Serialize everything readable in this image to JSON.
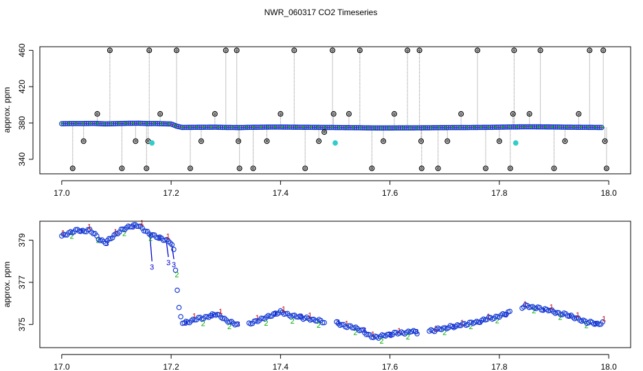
{
  "title": "NWR_060317  CO2 Timeseries",
  "colors": {
    "level1": "#cc0000",
    "level2": "#00aa00",
    "level3": "#0000cc",
    "main_marker": "#1a3fd4",
    "ref_marker": "#000000",
    "flag_marker": "#33cccc",
    "spike_line": "#888888"
  },
  "chart_data": [
    {
      "type": "scatter",
      "panel": "top",
      "ylabel": "approx. ppm",
      "xlim": [
        16.96,
        18.04
      ],
      "ylim": [
        324,
        464
      ],
      "xticks": [
        17.0,
        17.2,
        17.4,
        17.6,
        17.8,
        18.0
      ],
      "xtick_labels": [
        "17.0",
        "17.2",
        "17.4",
        "17.6",
        "17.8",
        "18.0"
      ],
      "yticks": [
        340,
        380,
        420,
        460
      ],
      "ytick_labels": [
        "340",
        "380",
        "420",
        "460"
      ],
      "main_series": {
        "x": [
          17.0,
          17.02,
          17.04,
          17.06,
          17.08,
          17.1,
          17.12,
          17.14,
          17.16,
          17.17,
          17.2,
          17.21,
          17.22,
          17.24,
          17.26,
          17.28,
          17.3,
          17.32,
          17.33,
          17.34,
          17.36,
          17.38,
          17.4,
          17.42,
          17.44,
          17.46,
          17.48,
          17.49,
          17.5,
          17.52,
          17.54,
          17.56,
          17.58,
          17.6,
          17.62,
          17.64,
          17.66,
          17.67,
          17.68,
          17.7,
          17.72,
          17.74,
          17.76,
          17.78,
          17.8,
          17.82,
          17.83,
          17.84,
          17.86,
          17.88,
          17.9,
          17.92,
          17.94,
          17.96,
          17.98,
          17.99
        ],
        "y": [
          379.2,
          379.4,
          379.4,
          379.5,
          379.0,
          379.3,
          379.6,
          379.7,
          379.3,
          379.4,
          378.9,
          376.5,
          375.1,
          375.2,
          375.3,
          375.4,
          375.1,
          375.0,
          375.0,
          375.2,
          375.3,
          375.5,
          375.5,
          375.4,
          375.3,
          375.2,
          375.1,
          375.1,
          375.0,
          374.9,
          374.8,
          374.6,
          374.5,
          374.5,
          374.6,
          374.6,
          374.7,
          374.7,
          374.8,
          374.9,
          375.0,
          375.0,
          375.1,
          375.2,
          375.4,
          375.6,
          375.6,
          375.8,
          375.8,
          375.7,
          375.6,
          375.4,
          375.3,
          375.2,
          375.1,
          375.1
        ]
      },
      "reference_points": {
        "x": [
          17.02,
          17.04,
          17.065,
          17.088,
          17.11,
          17.135,
          17.155,
          17.158,
          17.16,
          17.18,
          17.21,
          17.235,
          17.255,
          17.28,
          17.3,
          17.32,
          17.323,
          17.325,
          17.35,
          17.375,
          17.4,
          17.425,
          17.445,
          17.47,
          17.48,
          17.495,
          17.497,
          17.525,
          17.545,
          17.567,
          17.588,
          17.608,
          17.632,
          17.654,
          17.657,
          17.658,
          17.688,
          17.705,
          17.73,
          17.76,
          17.775,
          17.8,
          17.82,
          17.825,
          17.827,
          17.855,
          17.875,
          17.9,
          17.92,
          17.945,
          17.965,
          17.99,
          17.993,
          17.996
        ],
        "y": [
          330,
          360,
          390,
          460,
          330,
          360,
          330,
          360,
          460,
          390,
          460,
          330,
          360,
          390,
          460,
          460,
          360,
          330,
          330,
          360,
          390,
          460,
          330,
          360,
          370,
          460,
          390,
          390,
          460,
          330,
          360,
          390,
          460,
          460,
          360,
          330,
          330,
          360,
          390,
          460,
          330,
          360,
          330,
          390,
          460,
          390,
          460,
          330,
          360,
          390,
          460,
          460,
          360,
          330
        ]
      },
      "flagged_points": {
        "x": [
          17.165,
          17.5,
          17.83
        ],
        "y": [
          358,
          358,
          358
        ]
      }
    },
    {
      "type": "scatter",
      "panel": "bottom",
      "ylabel": "approx. ppm",
      "xlim": [
        16.96,
        18.04
      ],
      "ylim": [
        373.9,
        379.9
      ],
      "xticks": [
        17.0,
        17.2,
        17.4,
        17.6,
        17.8,
        18.0
      ],
      "xtick_labels": [
        "17.0",
        "17.2",
        "17.4",
        "17.6",
        "17.8",
        "18.0"
      ],
      "yticks": [
        375,
        377,
        379
      ],
      "ytick_labels": [
        "375",
        "377",
        "379"
      ],
      "level_labels": [
        "1",
        "2",
        "3"
      ],
      "series": {
        "x": [
          17.0,
          17.01,
          17.02,
          17.03,
          17.04,
          17.05,
          17.06,
          17.07,
          17.08,
          17.09,
          17.1,
          17.11,
          17.12,
          17.13,
          17.14,
          17.15,
          17.16,
          17.17,
          17.18,
          17.19,
          17.2,
          17.205,
          17.21,
          17.215,
          17.22,
          17.23,
          17.24,
          17.25,
          17.26,
          17.27,
          17.28,
          17.29,
          17.3,
          17.31,
          17.32,
          17.34,
          17.35,
          17.36,
          17.37,
          17.38,
          17.39,
          17.4,
          17.41,
          17.42,
          17.43,
          17.44,
          17.45,
          17.46,
          17.47,
          17.48,
          17.5,
          17.51,
          17.52,
          17.53,
          17.54,
          17.55,
          17.56,
          17.57,
          17.58,
          17.59,
          17.6,
          17.61,
          17.62,
          17.63,
          17.64,
          17.65,
          17.67,
          17.68,
          17.69,
          17.7,
          17.71,
          17.72,
          17.73,
          17.74,
          17.75,
          17.76,
          17.77,
          17.78,
          17.79,
          17.8,
          17.81,
          17.82,
          17.84,
          17.85,
          17.86,
          17.87,
          17.88,
          17.89,
          17.9,
          17.91,
          17.92,
          17.93,
          17.94,
          17.95,
          17.96,
          17.97,
          17.98,
          17.99
        ],
        "y": [
          379.2,
          379.3,
          379.4,
          379.5,
          379.4,
          379.5,
          379.3,
          379.0,
          378.9,
          379.1,
          379.3,
          379.5,
          379.6,
          379.7,
          379.7,
          379.5,
          379.3,
          379.2,
          379.1,
          379.0,
          378.9,
          378.5,
          377.0,
          375.6,
          375.1,
          375.1,
          375.2,
          375.3,
          375.3,
          375.4,
          375.5,
          375.4,
          375.2,
          375.1,
          375.0,
          375.0,
          375.1,
          375.2,
          375.3,
          375.4,
          375.5,
          375.6,
          375.5,
          375.4,
          375.4,
          375.3,
          375.3,
          375.2,
          375.2,
          375.1,
          375.1,
          375.0,
          374.9,
          374.9,
          374.8,
          374.7,
          374.5,
          374.4,
          374.4,
          374.5,
          374.5,
          374.6,
          374.6,
          374.6,
          374.7,
          374.6,
          374.7,
          374.7,
          374.8,
          374.8,
          374.9,
          374.9,
          375.0,
          375.0,
          375.1,
          375.1,
          375.2,
          375.3,
          375.3,
          375.4,
          375.5,
          375.6,
          375.8,
          375.9,
          375.8,
          375.8,
          375.7,
          375.7,
          375.6,
          375.5,
          375.5,
          375.4,
          375.3,
          375.2,
          375.1,
          375.1,
          375.0,
          375.1
        ]
      },
      "dropouts": {
        "x": [
          17.165,
          17.195,
          17.205
        ],
        "y": [
          378.0,
          378.2,
          378.1
        ]
      }
    }
  ]
}
